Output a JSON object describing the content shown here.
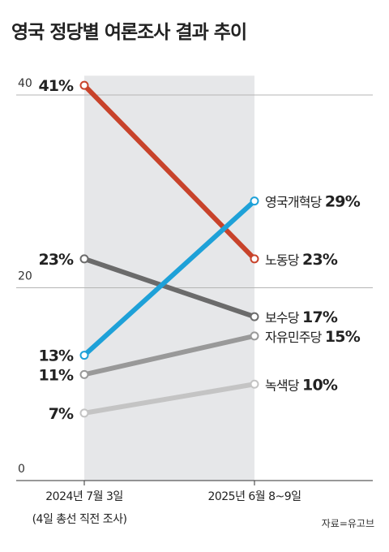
{
  "title": "영국 정당별 여론조사 결과 추이",
  "source": "자료=유고브",
  "chart_data": {
    "type": "line",
    "title": "영국 정당별 여론조사 결과 추이",
    "categories": [
      "2024년 7월 3일",
      "2025년 6월 8~9일"
    ],
    "category_sublabels": [
      "(4일 총선 직전 조사)",
      ""
    ],
    "y_ticks": [
      0,
      20,
      40
    ],
    "ylim": [
      0,
      42
    ],
    "grid": true,
    "highlight_band": "between the two dates",
    "value_suffix": "%",
    "series": [
      {
        "name": "노동당",
        "values": [
          41,
          23
        ],
        "color": "#c8432b",
        "labels": [
          "41%",
          "23%"
        ]
      },
      {
        "name": "영국개혁당",
        "values": [
          13,
          29
        ],
        "color": "#1ea1d8",
        "labels": [
          "13%",
          "29%"
        ]
      },
      {
        "name": "보수당",
        "values": [
          23,
          17
        ],
        "color": "#6b6b6b",
        "labels": [
          "23%",
          "17%"
        ]
      },
      {
        "name": "자유민주당",
        "values": [
          11,
          15
        ],
        "color": "#999999",
        "labels": [
          "11%",
          "15%"
        ]
      },
      {
        "name": "녹색당",
        "values": [
          7,
          10
        ],
        "color": "#c4c4c4",
        "labels": [
          "7%",
          "10%"
        ]
      }
    ]
  }
}
